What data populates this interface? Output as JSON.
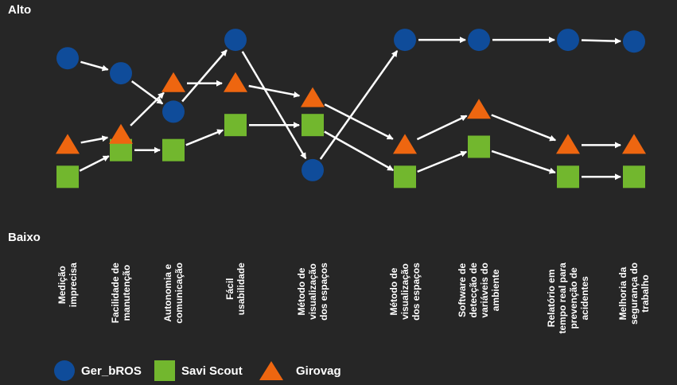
{
  "chart_data": {
    "type": "line",
    "y_levels": {
      "high": "Alto",
      "low": "Baixo"
    },
    "ylim": [
      0,
      1
    ],
    "categories": [
      "Medição imprecisa",
      "Facilidade de manutenção",
      "Autonomia e comunicação",
      "Fácil usabilidade",
      "Método de visualização dos espaços",
      "Método de visualização dos espaços",
      "Software de detecção de variáveis do ambiente",
      "Relatório em tempo real para prevenção de acidentes",
      "Melhoria da segurança do trabalho"
    ],
    "series": [
      {
        "name": "Ger_bROS",
        "marker": "circle",
        "color": "#0f4c9a",
        "values": [
          0.88,
          0.79,
          0.56,
          0.99,
          0.21,
          0.99,
          0.99,
          0.99,
          0.98
        ]
      },
      {
        "name": "Savi Scout",
        "marker": "square",
        "color": "#72b72e",
        "values": [
          0.17,
          0.33,
          0.33,
          0.48,
          0.48,
          0.17,
          0.35,
          0.17,
          0.17
        ]
      },
      {
        "name": "Girovag",
        "marker": "triangle",
        "color": "#ee6610",
        "values": [
          0.36,
          0.42,
          0.73,
          0.73,
          0.64,
          0.36,
          0.57,
          0.36,
          0.36
        ]
      }
    ]
  }
}
